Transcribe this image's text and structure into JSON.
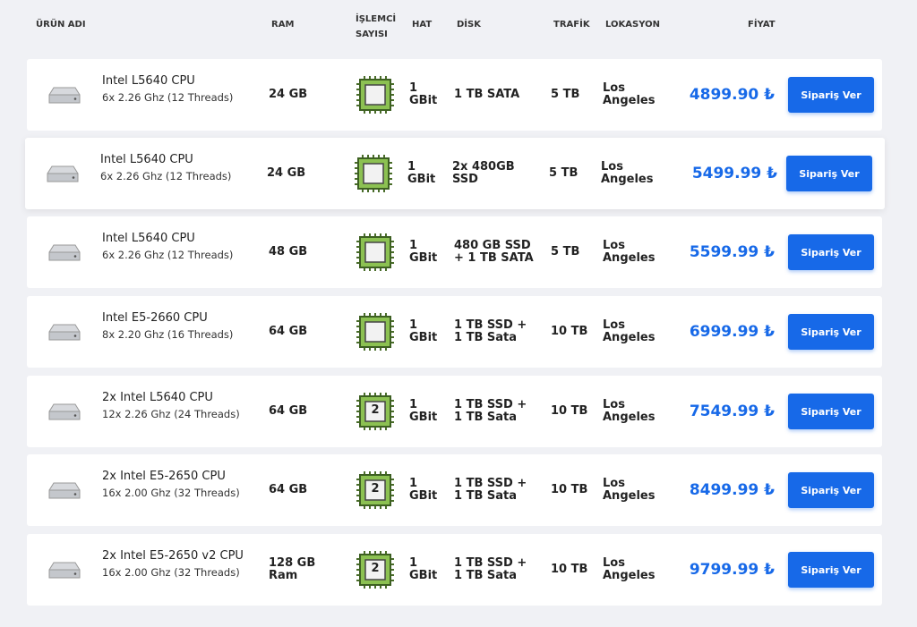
{
  "header": {
    "columns": [
      "ÜRÜN ADI",
      "RAM",
      "İŞLEMCİ SAYISI",
      "HAT",
      "DİSK",
      "TRAFİK",
      "LOKASYON",
      "FİYAT"
    ]
  },
  "table": {
    "rows": [
      {
        "name": "Intel L5640 CPU",
        "spec": "6x 2.26 Ghz (12 Threads)",
        "ram": "24 GB",
        "line": "1 GBit",
        "disk": "1 TB SATA",
        "traffic": "5 TB",
        "location": "Los Angeles",
        "price": "4899.90 ₺",
        "button": "Sipariş Ver"
      },
      {
        "name": "Intel L5640 CPU",
        "spec": "6x 2.26 Ghz (12 Threads)",
        "ram": "24 GB",
        "line": "1 GBit",
        "disk": "2x 480GB SSD",
        "traffic": "5 TB",
        "location": "Los Angeles",
        "price": "5499.99 ₺",
        "button": "Sipariş Ver"
      },
      {
        "name": "Intel L5640 CPU",
        "spec": "6x 2.26 Ghz (12 Threads)",
        "ram": "48 GB",
        "line": "1 GBit",
        "disk": "480 GB SSD + 1 TB SATA",
        "traffic": "5 TB",
        "location": "Los Angeles",
        "price": "5599.99 ₺",
        "button": "Sipariş Ver"
      },
      {
        "name": "Intel E5-2660 CPU",
        "spec": "8x 2.20 Ghz (16 Threads)",
        "ram": "64 GB",
        "line": "1 GBit",
        "disk": "1 TB SSD + 1 TB Sata",
        "traffic": "10 TB",
        "location": "Los Angeles",
        "price": "6999.99 ₺",
        "button": "Sipariş Ver"
      },
      {
        "name": "2x Intel L5640 CPU",
        "spec": "12x 2.26 Ghz (24 Threads)",
        "ram": "64 GB",
        "cpu": "2",
        "line": "1 GBit",
        "disk": "1 TB SSD + 1 TB Sata",
        "traffic": "10 TB",
        "location": "Los Angeles",
        "price": "7549.99 ₺",
        "button": "Sipariş Ver"
      },
      {
        "name": "2x Intel E5-2650 CPU",
        "spec": "16x 2.00 Ghz (32 Threads)",
        "ram": "64 GB",
        "cpu": "2",
        "line": "1 GBit",
        "disk": "1 TB SSD + 1 TB Sata",
        "traffic": "10 TB",
        "location": "Los Angeles",
        "price": "8499.99 ₺",
        "button": "Sipariş Ver"
      },
      {
        "name": "2x Intel E5-2650 v2 CPU",
        "spec": "16x 2.00 Ghz (32 Threads)",
        "ram": "128 GB Ram",
        "cpu": "2",
        "line": "1 GBit",
        "disk": "1 TB SSD + 1 TB Sata",
        "traffic": "10 TB",
        "location": "Los Angeles",
        "price": "9799.99 ₺",
        "button": "Sipariş Ver"
      }
    ]
  }
}
